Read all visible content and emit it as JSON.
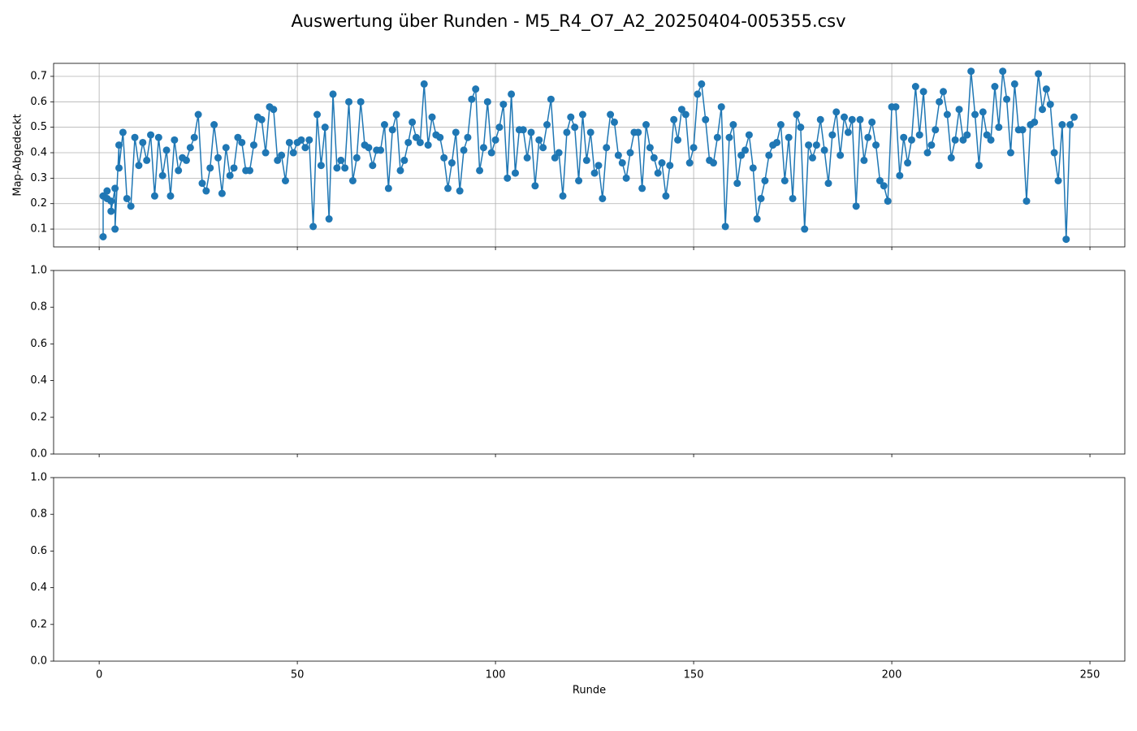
{
  "title": "Auswertung über Runden - M5_R4_O7_A2_20250404-005355.csv",
  "chart_data": [
    {
      "type": "line",
      "ylabel": "Map-Abgedeckt",
      "grid": true,
      "xlim": [
        -11.5,
        258.8
      ],
      "xticks": [
        0,
        50,
        100,
        150,
        200,
        250
      ],
      "ylim": [
        0.03,
        0.751
      ],
      "yticks": [
        0.1,
        0.2,
        0.3,
        0.4,
        0.5,
        0.6,
        0.7
      ],
      "x": [
        1,
        1,
        2,
        2,
        3,
        3,
        4,
        4,
        5,
        5,
        6,
        7,
        8,
        9,
        10,
        11,
        12,
        13,
        14,
        15,
        16,
        17,
        18,
        19,
        20,
        21,
        22,
        23,
        24,
        25,
        26,
        27,
        28,
        29,
        30,
        31,
        32,
        33,
        34,
        35,
        36,
        37,
        38,
        39,
        40,
        41,
        42,
        43,
        44,
        45,
        46,
        47,
        48,
        49,
        50,
        51,
        52,
        53,
        54,
        55,
        56,
        57,
        58,
        59,
        60,
        61,
        62,
        63,
        64,
        65,
        66,
        67,
        68,
        69,
        70,
        71,
        72,
        73,
        74,
        75,
        76,
        77,
        78,
        79,
        80,
        81,
        82,
        83,
        84,
        85,
        86,
        87,
        88,
        89,
        90,
        91,
        92,
        93,
        94,
        95,
        96,
        97,
        98,
        99,
        100,
        101,
        102,
        103,
        104,
        105,
        106,
        107,
        108,
        109,
        110,
        111,
        112,
        113,
        114,
        115,
        116,
        117,
        118,
        119,
        120,
        121,
        122,
        123,
        124,
        125,
        126,
        127,
        128,
        129,
        130,
        131,
        132,
        133,
        134,
        135,
        136,
        137,
        138,
        139,
        140,
        141,
        142,
        143,
        144,
        145,
        146,
        147,
        148,
        149,
        150,
        151,
        152,
        153,
        154,
        155,
        156,
        157,
        158,
        159,
        160,
        161,
        162,
        163,
        164,
        165,
        166,
        167,
        168,
        169,
        170,
        171,
        172,
        173,
        174,
        175,
        176,
        177,
        178,
        179,
        180,
        181,
        182,
        183,
        184,
        185,
        186,
        187,
        188,
        189,
        190,
        191,
        192,
        193,
        194,
        195,
        196,
        197,
        198,
        199,
        200,
        201,
        202,
        203,
        204,
        205,
        206,
        207,
        208,
        209,
        210,
        211,
        212,
        213,
        214,
        215,
        216,
        217,
        218,
        219,
        220,
        221,
        222,
        223,
        224,
        225,
        226,
        227,
        228,
        229,
        230,
        231,
        232,
        233,
        234,
        235,
        236,
        237,
        238,
        239,
        240,
        241,
        242,
        243,
        244,
        245,
        246
      ],
      "series": [
        {
          "color": "#1f77b4",
          "values": [
            0.07,
            0.23,
            0.25,
            0.22,
            0.21,
            0.17,
            0.26,
            0.1,
            0.43,
            0.34,
            0.48,
            0.22,
            0.19,
            0.46,
            0.35,
            0.44,
            0.37,
            0.47,
            0.23,
            0.46,
            0.31,
            0.41,
            0.23,
            0.45,
            0.33,
            0.38,
            0.37,
            0.42,
            0.46,
            0.55,
            0.28,
            0.25,
            0.34,
            0.51,
            0.38,
            0.24,
            0.42,
            0.31,
            0.34,
            0.46,
            0.44,
            0.33,
            0.33,
            0.43,
            0.54,
            0.53,
            0.4,
            0.58,
            0.57,
            0.37,
            0.39,
            0.29,
            0.44,
            0.4,
            0.44,
            0.45,
            0.42,
            0.45,
            0.11,
            0.55,
            0.35,
            0.5,
            0.14,
            0.63,
            0.34,
            0.37,
            0.34,
            0.6,
            0.29,
            0.38,
            0.6,
            0.43,
            0.42,
            0.35,
            0.41,
            0.41,
            0.51,
            0.26,
            0.49,
            0.55,
            0.33,
            0.37,
            0.44,
            0.52,
            0.46,
            0.44,
            0.67,
            0.43,
            0.54,
            0.47,
            0.46,
            0.38,
            0.26,
            0.36,
            0.48,
            0.25,
            0.41,
            0.46,
            0.61,
            0.65,
            0.33,
            0.42,
            0.6,
            0.4,
            0.45,
            0.5,
            0.59,
            0.3,
            0.63,
            0.32,
            0.49,
            0.49,
            0.38,
            0.48,
            0.27,
            0.45,
            0.42,
            0.51,
            0.61,
            0.38,
            0.4,
            0.23,
            0.48,
            0.54,
            0.5,
            0.29,
            0.55,
            0.37,
            0.48,
            0.32,
            0.35,
            0.22,
            0.42,
            0.55,
            0.52,
            0.39,
            0.36,
            0.3,
            0.4,
            0.48,
            0.48,
            0.26,
            0.51,
            0.42,
            0.38,
            0.32,
            0.36,
            0.23,
            0.35,
            0.53,
            0.45,
            0.57,
            0.55,
            0.36,
            0.42,
            0.63,
            0.67,
            0.53,
            0.37,
            0.36,
            0.46,
            0.58,
            0.11,
            0.46,
            0.51,
            0.28,
            0.39,
            0.41,
            0.47,
            0.34,
            0.14,
            0.22,
            0.29,
            0.39,
            0.43,
            0.44,
            0.51,
            0.29,
            0.46,
            0.22,
            0.55,
            0.5,
            0.1,
            0.43,
            0.38,
            0.43,
            0.53,
            0.41,
            0.28,
            0.47,
            0.56,
            0.39,
            0.54,
            0.48,
            0.53,
            0.19,
            0.53,
            0.37,
            0.46,
            0.52,
            0.43,
            0.29,
            0.27,
            0.21,
            0.58,
            0.58,
            0.31,
            0.46,
            0.36,
            0.45,
            0.66,
            0.47,
            0.64,
            0.4,
            0.43,
            0.49,
            0.6,
            0.64,
            0.55,
            0.38,
            0.45,
            0.57,
            0.45,
            0.47,
            0.72,
            0.55,
            0.35,
            0.56,
            0.47,
            0.45,
            0.66,
            0.5,
            0.72,
            0.61,
            0.4,
            0.67,
            0.49,
            0.49,
            0.21,
            0.51,
            0.52,
            0.71,
            0.57,
            0.65,
            0.59,
            0.4,
            0.29,
            0.51,
            0.06,
            0.51,
            0.54
          ]
        }
      ]
    },
    {
      "type": "line",
      "grid": false,
      "xlim": [
        -11.5,
        258.8
      ],
      "xticks": [
        0,
        50,
        100,
        150,
        200,
        250
      ],
      "ylim": [
        0,
        1
      ],
      "yticks": [
        {
          "value": 0,
          "label": "0.0"
        },
        0.2,
        0.4,
        0.6,
        0.8,
        {
          "value": 1,
          "label": "1.0"
        }
      ],
      "series": []
    },
    {
      "type": "line",
      "grid": false,
      "xlabel": "Runde",
      "xlim": [
        -11.5,
        258.8
      ],
      "xticks": [
        0,
        50,
        100,
        150,
        200,
        250
      ],
      "ylim": [
        0,
        1
      ],
      "yticks": [
        {
          "value": 0,
          "label": "0.0"
        },
        0.2,
        0.4,
        0.6,
        0.8,
        {
          "value": 1,
          "label": "1.0"
        }
      ],
      "series": []
    }
  ]
}
